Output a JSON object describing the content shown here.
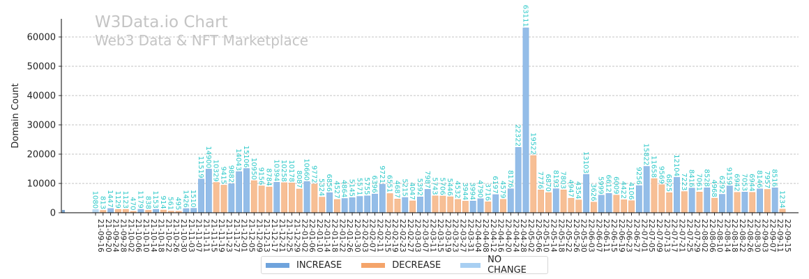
{
  "chart_data": {
    "type": "bar",
    "title": "W3Data.io Chart",
    "subtitle": "Web3 Data & NFT Marketplace",
    "xlabel": "",
    "ylabel": "Domain Count",
    "ylim": [
      0,
      66000
    ],
    "yticks": [
      0,
      10000,
      20000,
      30000,
      40000,
      50000,
      60000
    ],
    "grid": "horizontal-dashed",
    "legend_position": "bottom-center",
    "legend": [
      {
        "name": "INCREASE",
        "color": "#6fa3dc"
      },
      {
        "name": "DECREASE",
        "color": "#f4a46a"
      },
      {
        "name": "NO CHANGE",
        "color": "#a8cff2"
      }
    ],
    "colors": {
      "increase": "#94bde8",
      "decrease": "#f7bf95",
      "no_change": "#bcdcf5",
      "value_label": "#2ec9c9"
    },
    "categories": [
      "21-09-16",
      "21-09-20",
      "21-09-24",
      "21-09-28",
      "21-10-02",
      "21-10-06",
      "21-10-10",
      "21-10-14",
      "21-10-18",
      "21-10-22",
      "21-10-26",
      "21-10-30",
      "21-11-03",
      "21-11-07",
      "21-11-11",
      "21-11-15",
      "21-11-19",
      "21-11-23",
      "21-11-27",
      "21-12-01",
      "21-12-05",
      "21-12-09",
      "21-12-13",
      "21-12-17",
      "21-12-21",
      "21-12-25",
      "21-12-29",
      "22-01-02",
      "22-01-06",
      "22-01-10",
      "22-01-14",
      "22-01-18",
      "22-01-22",
      "22-01-26",
      "22-01-30",
      "22-02-03",
      "22-02-07",
      "22-02-11",
      "22-02-15",
      "22-02-19",
      "22-02-23",
      "22-02-27",
      "22-03-03",
      "22-03-07",
      "22-03-11",
      "22-03-15",
      "22-03-19",
      "22-03-23",
      "22-03-27",
      "22-03-31",
      "22-04-04",
      "22-04-08",
      "22-04-12",
      "22-04-16",
      "22-04-20",
      "22-04-24",
      "22-04-28",
      "22-05-02",
      "22-05-06",
      "22-05-10",
      "22-05-14",
      "22-05-18",
      "22-05-22",
      "22-05-26",
      "22-05-30",
      "22-06-03",
      "22-06-07",
      "22-06-11",
      "22-06-15",
      "22-06-19",
      "22-06-23",
      "22-06-27",
      "22-07-01",
      "22-07-05",
      "22-07-09",
      "22-07-13",
      "22-07-17",
      "22-07-21",
      "22-07-25",
      "22-07-29",
      "22-08-02",
      "22-08-06",
      "22-08-10",
      "22-08-14",
      "22-08-18",
      "22-08-22",
      "22-08-26",
      "22-08-30",
      "22-09-03",
      "22-09-07",
      "22-09-11",
      "22-09-15"
    ],
    "values": [
      1080,
      813,
      1447,
      1129,
      1123,
      470,
      1179,
      838,
      1153,
      914,
      561,
      495,
      1426,
      1510,
      11519,
      14900,
      10329,
      9415,
      9882,
      14043,
      15106,
      10950,
      9156,
      8784,
      10394,
      10258,
      10178,
      8087,
      10660,
      9772,
      5324,
      6856,
      4527,
      4864,
      5145,
      5571,
      5755,
      6396,
      9721,
      6551,
      4687,
      5215,
      4047,
      5392,
      7987,
      5743,
      5706,
      5446,
      4532,
      3944,
      3994,
      4790,
      3716,
      6197,
      4579,
      8176,
      22322,
      63111,
      19522,
      7776,
      6870,
      8193,
      7803,
      4947,
      4354,
      13103,
      3626,
      5999,
      6612,
      6009,
      4422,
      4106,
      9256,
      15822,
      11658,
      9569,
      6825,
      12104,
      7223,
      8416,
      7061,
      8528,
      4968,
      6292,
      9159,
      6942,
      7053,
      6944,
      8146,
      7957,
      8516,
      1234
    ]
  }
}
